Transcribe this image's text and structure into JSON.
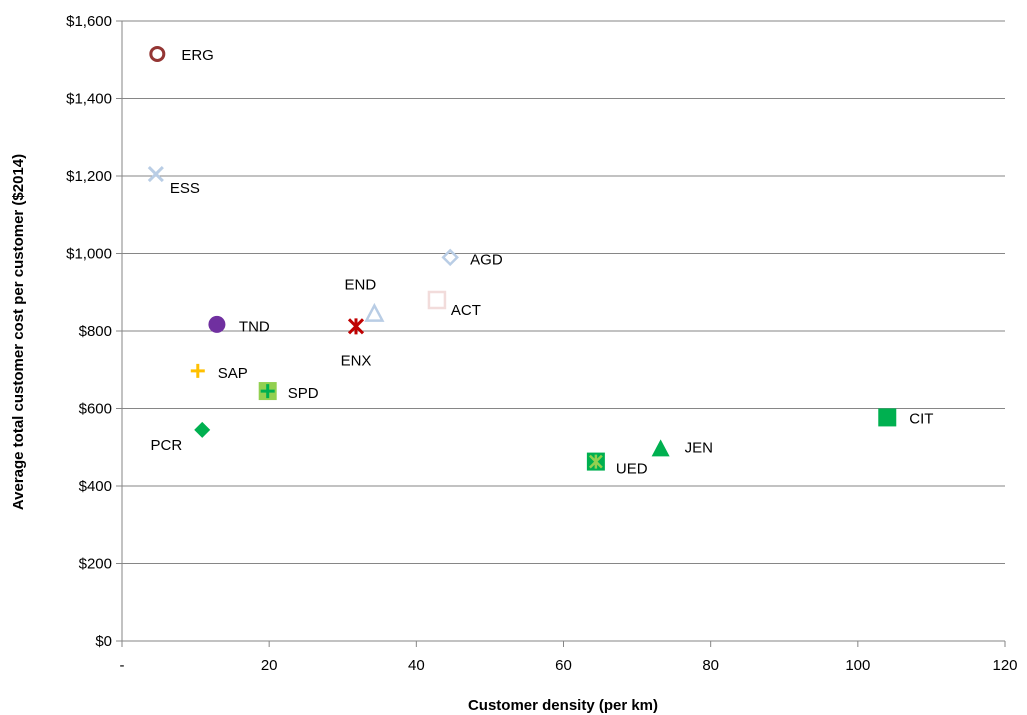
{
  "chart_data": {
    "type": "scatter",
    "xlabel": "Customer density (per km)",
    "ylabel": "Average total customer cost per customer ($2014)",
    "xlim": [
      0,
      120
    ],
    "ylim": [
      0,
      1600
    ],
    "x_ticks": [
      {
        "value": 0,
        "label": "-"
      },
      {
        "value": 20,
        "label": "20"
      },
      {
        "value": 40,
        "label": "40"
      },
      {
        "value": 60,
        "label": "60"
      },
      {
        "value": 80,
        "label": "80"
      },
      {
        "value": 100,
        "label": "100"
      },
      {
        "value": 120,
        "label": "120"
      }
    ],
    "y_ticks": [
      {
        "value": 0,
        "label": "$0"
      },
      {
        "value": 200,
        "label": "$200"
      },
      {
        "value": 400,
        "label": "$400"
      },
      {
        "value": 600,
        "label": "$600"
      },
      {
        "value": 800,
        "label": "$800"
      },
      {
        "value": 1000,
        "label": "$1,000"
      },
      {
        "value": 1200,
        "label": "$1,200"
      },
      {
        "value": 1400,
        "label": "$1,400"
      },
      {
        "value": 1600,
        "label": "$1,600"
      }
    ],
    "grid": "horizontal",
    "points": [
      {
        "label": "ERG",
        "x": 4.8,
        "y": 1515,
        "marker": "circle-open",
        "color": "#943634"
      },
      {
        "label": "ESS",
        "x": 4.6,
        "y": 1205,
        "marker": "x",
        "color": "#B9CDE5"
      },
      {
        "label": "AGD",
        "x": 44.6,
        "y": 990,
        "marker": "diamond-open",
        "color": "#B9CDE5"
      },
      {
        "label": "ACT",
        "x": 42.8,
        "y": 880,
        "marker": "square-open",
        "color": "#F2DCDB"
      },
      {
        "label": "END",
        "x": 34.3,
        "y": 845,
        "marker": "triangle-open",
        "color": "#B9CDE5"
      },
      {
        "label": "ENX",
        "x": 31.8,
        "y": 812,
        "marker": "star",
        "color": "#C00000"
      },
      {
        "label": "TND",
        "x": 12.9,
        "y": 817,
        "marker": "circle",
        "color": "#7030A0"
      },
      {
        "label": "SAP",
        "x": 10.3,
        "y": 697,
        "marker": "plus",
        "color": "#FFC000"
      },
      {
        "label": "SPD",
        "x": 19.8,
        "y": 645,
        "marker": "square-plus",
        "color": "#92D050"
      },
      {
        "label": "PCR",
        "x": 10.9,
        "y": 545,
        "marker": "diamond",
        "color": "#00B050"
      },
      {
        "label": "CIT",
        "x": 104.0,
        "y": 577,
        "marker": "square",
        "color": "#00B050"
      },
      {
        "label": "JEN",
        "x": 73.2,
        "y": 497,
        "marker": "triangle",
        "color": "#00B050"
      },
      {
        "label": "UED",
        "x": 64.4,
        "y": 463,
        "marker": "square-star",
        "color": "#00B050"
      }
    ]
  }
}
